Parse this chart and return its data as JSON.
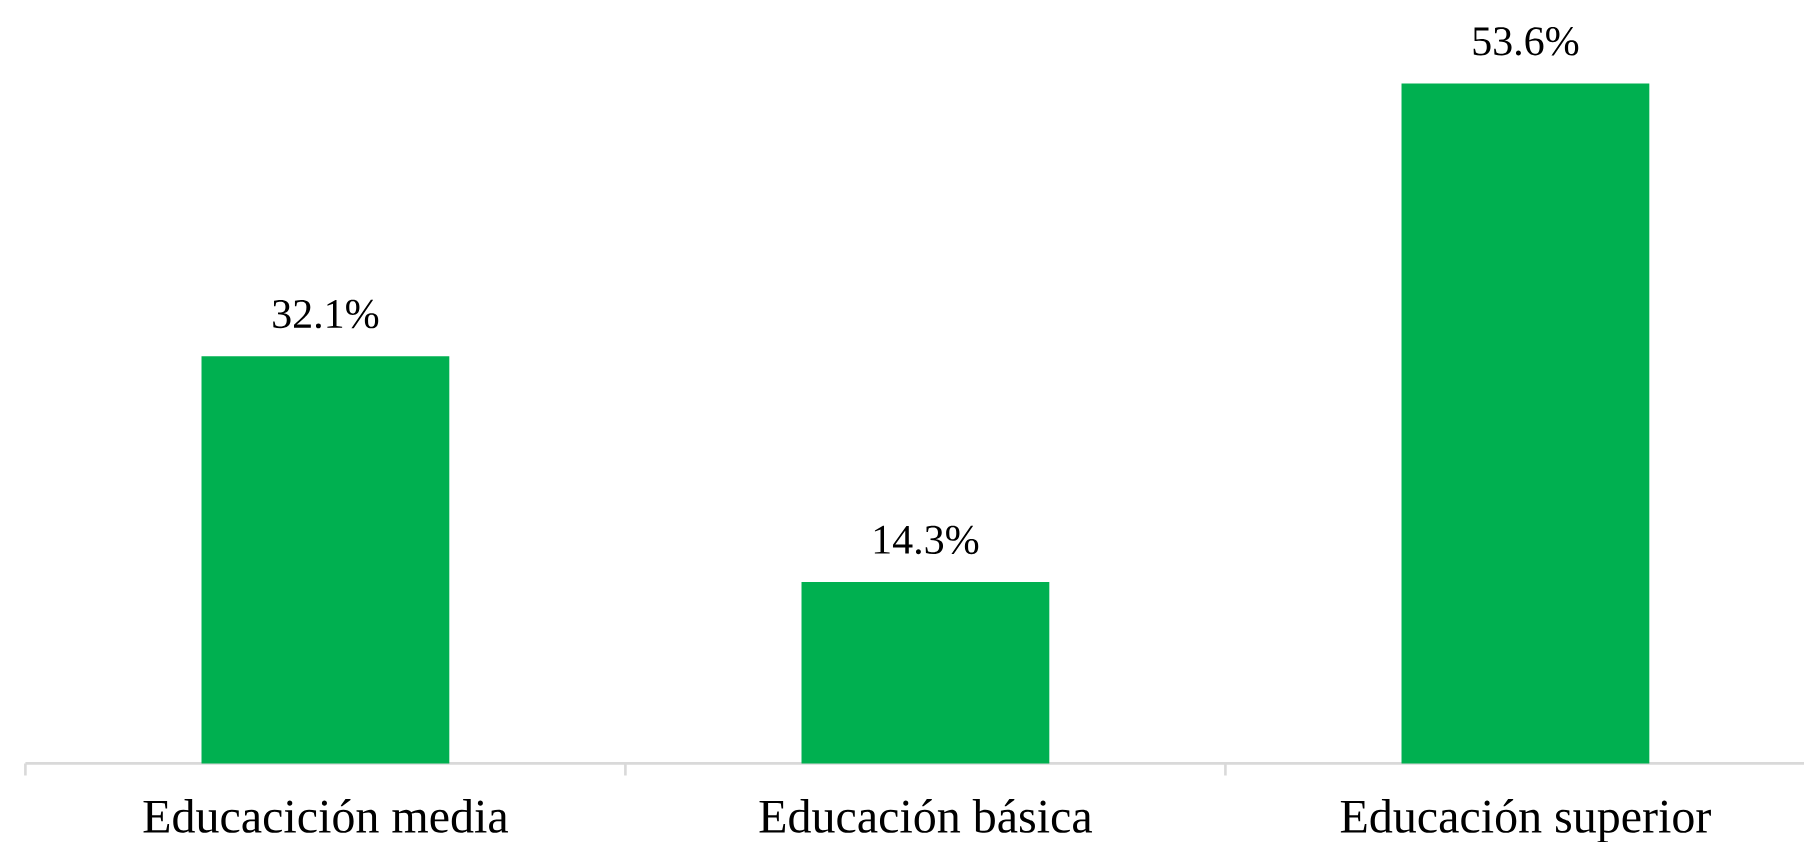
{
  "chart_data": {
    "type": "bar",
    "categories": [
      "Educacición media",
      "Educación básica",
      "Educación superior"
    ],
    "values": [
      32.1,
      14.3,
      53.6
    ],
    "color": "#00b050",
    "value_labels": [
      "32.1%",
      "14.3%",
      "53.6%"
    ],
    "tick_labels": "x"
  }
}
